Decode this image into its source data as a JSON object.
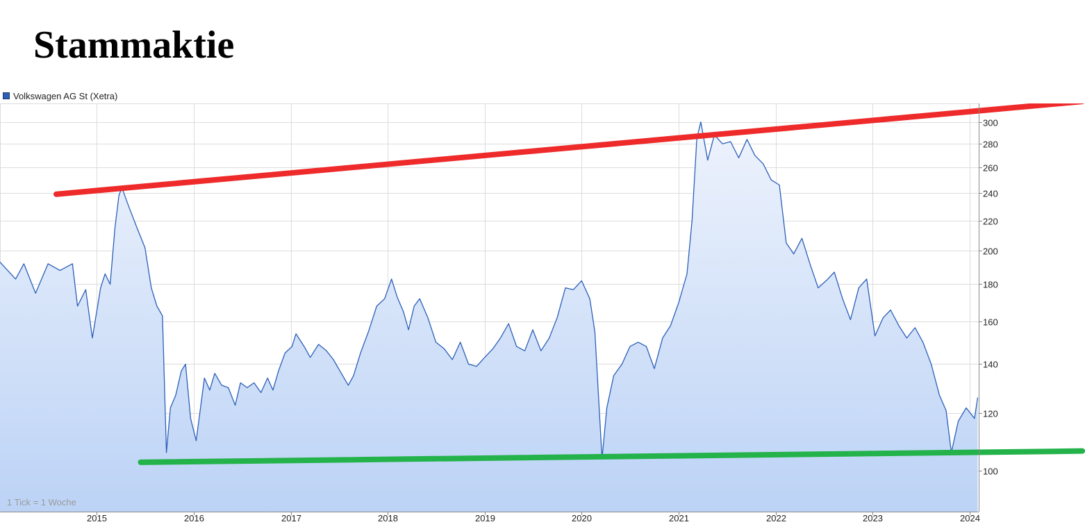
{
  "header": {
    "title": "Stammaktie"
  },
  "colors": {
    "line": "#2b5fb8",
    "fill_top": "#eef3fc",
    "fill_bottom": "#bcd3f6",
    "resistance": "#ee2a2a",
    "support": "#24b24b",
    "grid": "#dcdcdc"
  },
  "chart_data": {
    "type": "area",
    "y_scale": "log",
    "grid": true,
    "legend_position": "top-left",
    "legend": "Volkswagen AG St (Xetra)",
    "annotation": "1 Tick = 1 Woche",
    "ylim": [
      88,
      318
    ],
    "xlim": [
      "2014-01-01",
      "2024-02-05"
    ],
    "x_ticks": [
      "2015",
      "2016",
      "2017",
      "2018",
      "2019",
      "2020",
      "2021",
      "2022",
      "2023",
      "2024"
    ],
    "y_ticks": [
      100,
      120,
      140,
      160,
      180,
      200,
      220,
      240,
      260,
      280,
      300
    ],
    "series": [
      {
        "name": "Volkswagen AG St (Xetra)",
        "points": [
          [
            "2014-01-01",
            193
          ],
          [
            "2014-03-01",
            183
          ],
          [
            "2014-04-01",
            192
          ],
          [
            "2014-05-15",
            175
          ],
          [
            "2014-07-01",
            192
          ],
          [
            "2014-08-15",
            188
          ],
          [
            "2014-10-01",
            192
          ],
          [
            "2014-10-20",
            168
          ],
          [
            "2014-11-20",
            177
          ],
          [
            "2014-12-15",
            152
          ],
          [
            "2015-01-15",
            178
          ],
          [
            "2015-02-01",
            186
          ],
          [
            "2015-02-20",
            180
          ],
          [
            "2015-03-10",
            215
          ],
          [
            "2015-03-25",
            238
          ],
          [
            "2015-04-05",
            244
          ],
          [
            "2015-05-01",
            230
          ],
          [
            "2015-06-01",
            215
          ],
          [
            "2015-07-01",
            202
          ],
          [
            "2015-07-25",
            178
          ],
          [
            "2015-08-15",
            168
          ],
          [
            "2015-09-05",
            163
          ],
          [
            "2015-09-20",
            106
          ],
          [
            "2015-10-05",
            122
          ],
          [
            "2015-10-25",
            127
          ],
          [
            "2015-11-15",
            137
          ],
          [
            "2015-12-01",
            140
          ],
          [
            "2015-12-20",
            118
          ],
          [
            "2016-01-10",
            110
          ],
          [
            "2016-02-10",
            134
          ],
          [
            "2016-03-01",
            129
          ],
          [
            "2016-03-20",
            136
          ],
          [
            "2016-04-15",
            131
          ],
          [
            "2016-05-10",
            130
          ],
          [
            "2016-06-05",
            123
          ],
          [
            "2016-06-25",
            132
          ],
          [
            "2016-07-20",
            130
          ],
          [
            "2016-08-15",
            132
          ],
          [
            "2016-09-10",
            128
          ],
          [
            "2016-10-05",
            134
          ],
          [
            "2016-10-25",
            129
          ],
          [
            "2016-11-15",
            137
          ],
          [
            "2016-12-10",
            145
          ],
          [
            "2017-01-05",
            148
          ],
          [
            "2017-01-20",
            154
          ],
          [
            "2017-02-20",
            148
          ],
          [
            "2017-03-15",
            143
          ],
          [
            "2017-04-15",
            149
          ],
          [
            "2017-05-15",
            146
          ],
          [
            "2017-06-10",
            142
          ],
          [
            "2017-07-10",
            136
          ],
          [
            "2017-08-05",
            131
          ],
          [
            "2017-08-25",
            135
          ],
          [
            "2017-09-20",
            145
          ],
          [
            "2017-10-20",
            155
          ],
          [
            "2017-11-20",
            168
          ],
          [
            "2017-12-20",
            172
          ],
          [
            "2018-01-15",
            183
          ],
          [
            "2018-02-05",
            173
          ],
          [
            "2018-03-01",
            165
          ],
          [
            "2018-03-20",
            156
          ],
          [
            "2018-04-10",
            168
          ],
          [
            "2018-05-01",
            172
          ],
          [
            "2018-06-01",
            162
          ],
          [
            "2018-07-01",
            150
          ],
          [
            "2018-08-01",
            147
          ],
          [
            "2018-09-01",
            142
          ],
          [
            "2018-10-01",
            150
          ],
          [
            "2018-11-01",
            140
          ],
          [
            "2018-12-01",
            139
          ],
          [
            "2019-01-01",
            143
          ],
          [
            "2019-02-01",
            147
          ],
          [
            "2019-03-01",
            152
          ],
          [
            "2019-04-01",
            159
          ],
          [
            "2019-05-01",
            148
          ],
          [
            "2019-06-01",
            146
          ],
          [
            "2019-07-01",
            156
          ],
          [
            "2019-08-01",
            146
          ],
          [
            "2019-09-01",
            152
          ],
          [
            "2019-10-01",
            162
          ],
          [
            "2019-11-01",
            178
          ],
          [
            "2019-12-01",
            177
          ],
          [
            "2020-01-01",
            182
          ],
          [
            "2020-02-01",
            172
          ],
          [
            "2020-02-20",
            155
          ],
          [
            "2020-03-18",
            104
          ],
          [
            "2020-04-05",
            122
          ],
          [
            "2020-05-01",
            135
          ],
          [
            "2020-06-01",
            140
          ],
          [
            "2020-07-01",
            148
          ],
          [
            "2020-08-01",
            150
          ],
          [
            "2020-09-01",
            148
          ],
          [
            "2020-10-01",
            138
          ],
          [
            "2020-11-01",
            152
          ],
          [
            "2020-12-01",
            158
          ],
          [
            "2021-01-01",
            170
          ],
          [
            "2021-02-01",
            186
          ],
          [
            "2021-02-20",
            220
          ],
          [
            "2021-03-10",
            285
          ],
          [
            "2021-03-25",
            300
          ],
          [
            "2021-04-20",
            266
          ],
          [
            "2021-05-15",
            288
          ],
          [
            "2021-06-15",
            280
          ],
          [
            "2021-07-15",
            282
          ],
          [
            "2021-08-15",
            268
          ],
          [
            "2021-09-15",
            284
          ],
          [
            "2021-10-15",
            270
          ],
          [
            "2021-11-15",
            263
          ],
          [
            "2021-12-15",
            250
          ],
          [
            "2022-01-15",
            246
          ],
          [
            "2022-02-10",
            205
          ],
          [
            "2022-03-10",
            198
          ],
          [
            "2022-04-10",
            208
          ],
          [
            "2022-05-10",
            192
          ],
          [
            "2022-06-10",
            178
          ],
          [
            "2022-07-10",
            182
          ],
          [
            "2022-08-10",
            187
          ],
          [
            "2022-09-10",
            172
          ],
          [
            "2022-10-10",
            161
          ],
          [
            "2022-11-10",
            178
          ],
          [
            "2022-12-10",
            183
          ],
          [
            "2023-01-10",
            153
          ],
          [
            "2023-02-10",
            162
          ],
          [
            "2023-03-10",
            166
          ],
          [
            "2023-04-10",
            158
          ],
          [
            "2023-05-10",
            152
          ],
          [
            "2023-06-10",
            157
          ],
          [
            "2023-07-10",
            150
          ],
          [
            "2023-08-10",
            140
          ],
          [
            "2023-09-10",
            127
          ],
          [
            "2023-10-05",
            121
          ],
          [
            "2023-10-25",
            106
          ],
          [
            "2023-11-20",
            117
          ],
          [
            "2023-12-20",
            122
          ],
          [
            "2024-01-20",
            118
          ],
          [
            "2024-02-01",
            126
          ]
        ]
      }
    ],
    "trendlines": [
      {
        "name": "resistance",
        "color": "#ee2a2a",
        "from": [
          "2014-08-01",
          239
        ],
        "to": [
          "2025-03-01",
          320
        ]
      },
      {
        "name": "support",
        "color": "#24b24b",
        "from": [
          "2015-06-15",
          102.8
        ],
        "to": [
          "2025-03-01",
          106.5
        ]
      }
    ]
  }
}
